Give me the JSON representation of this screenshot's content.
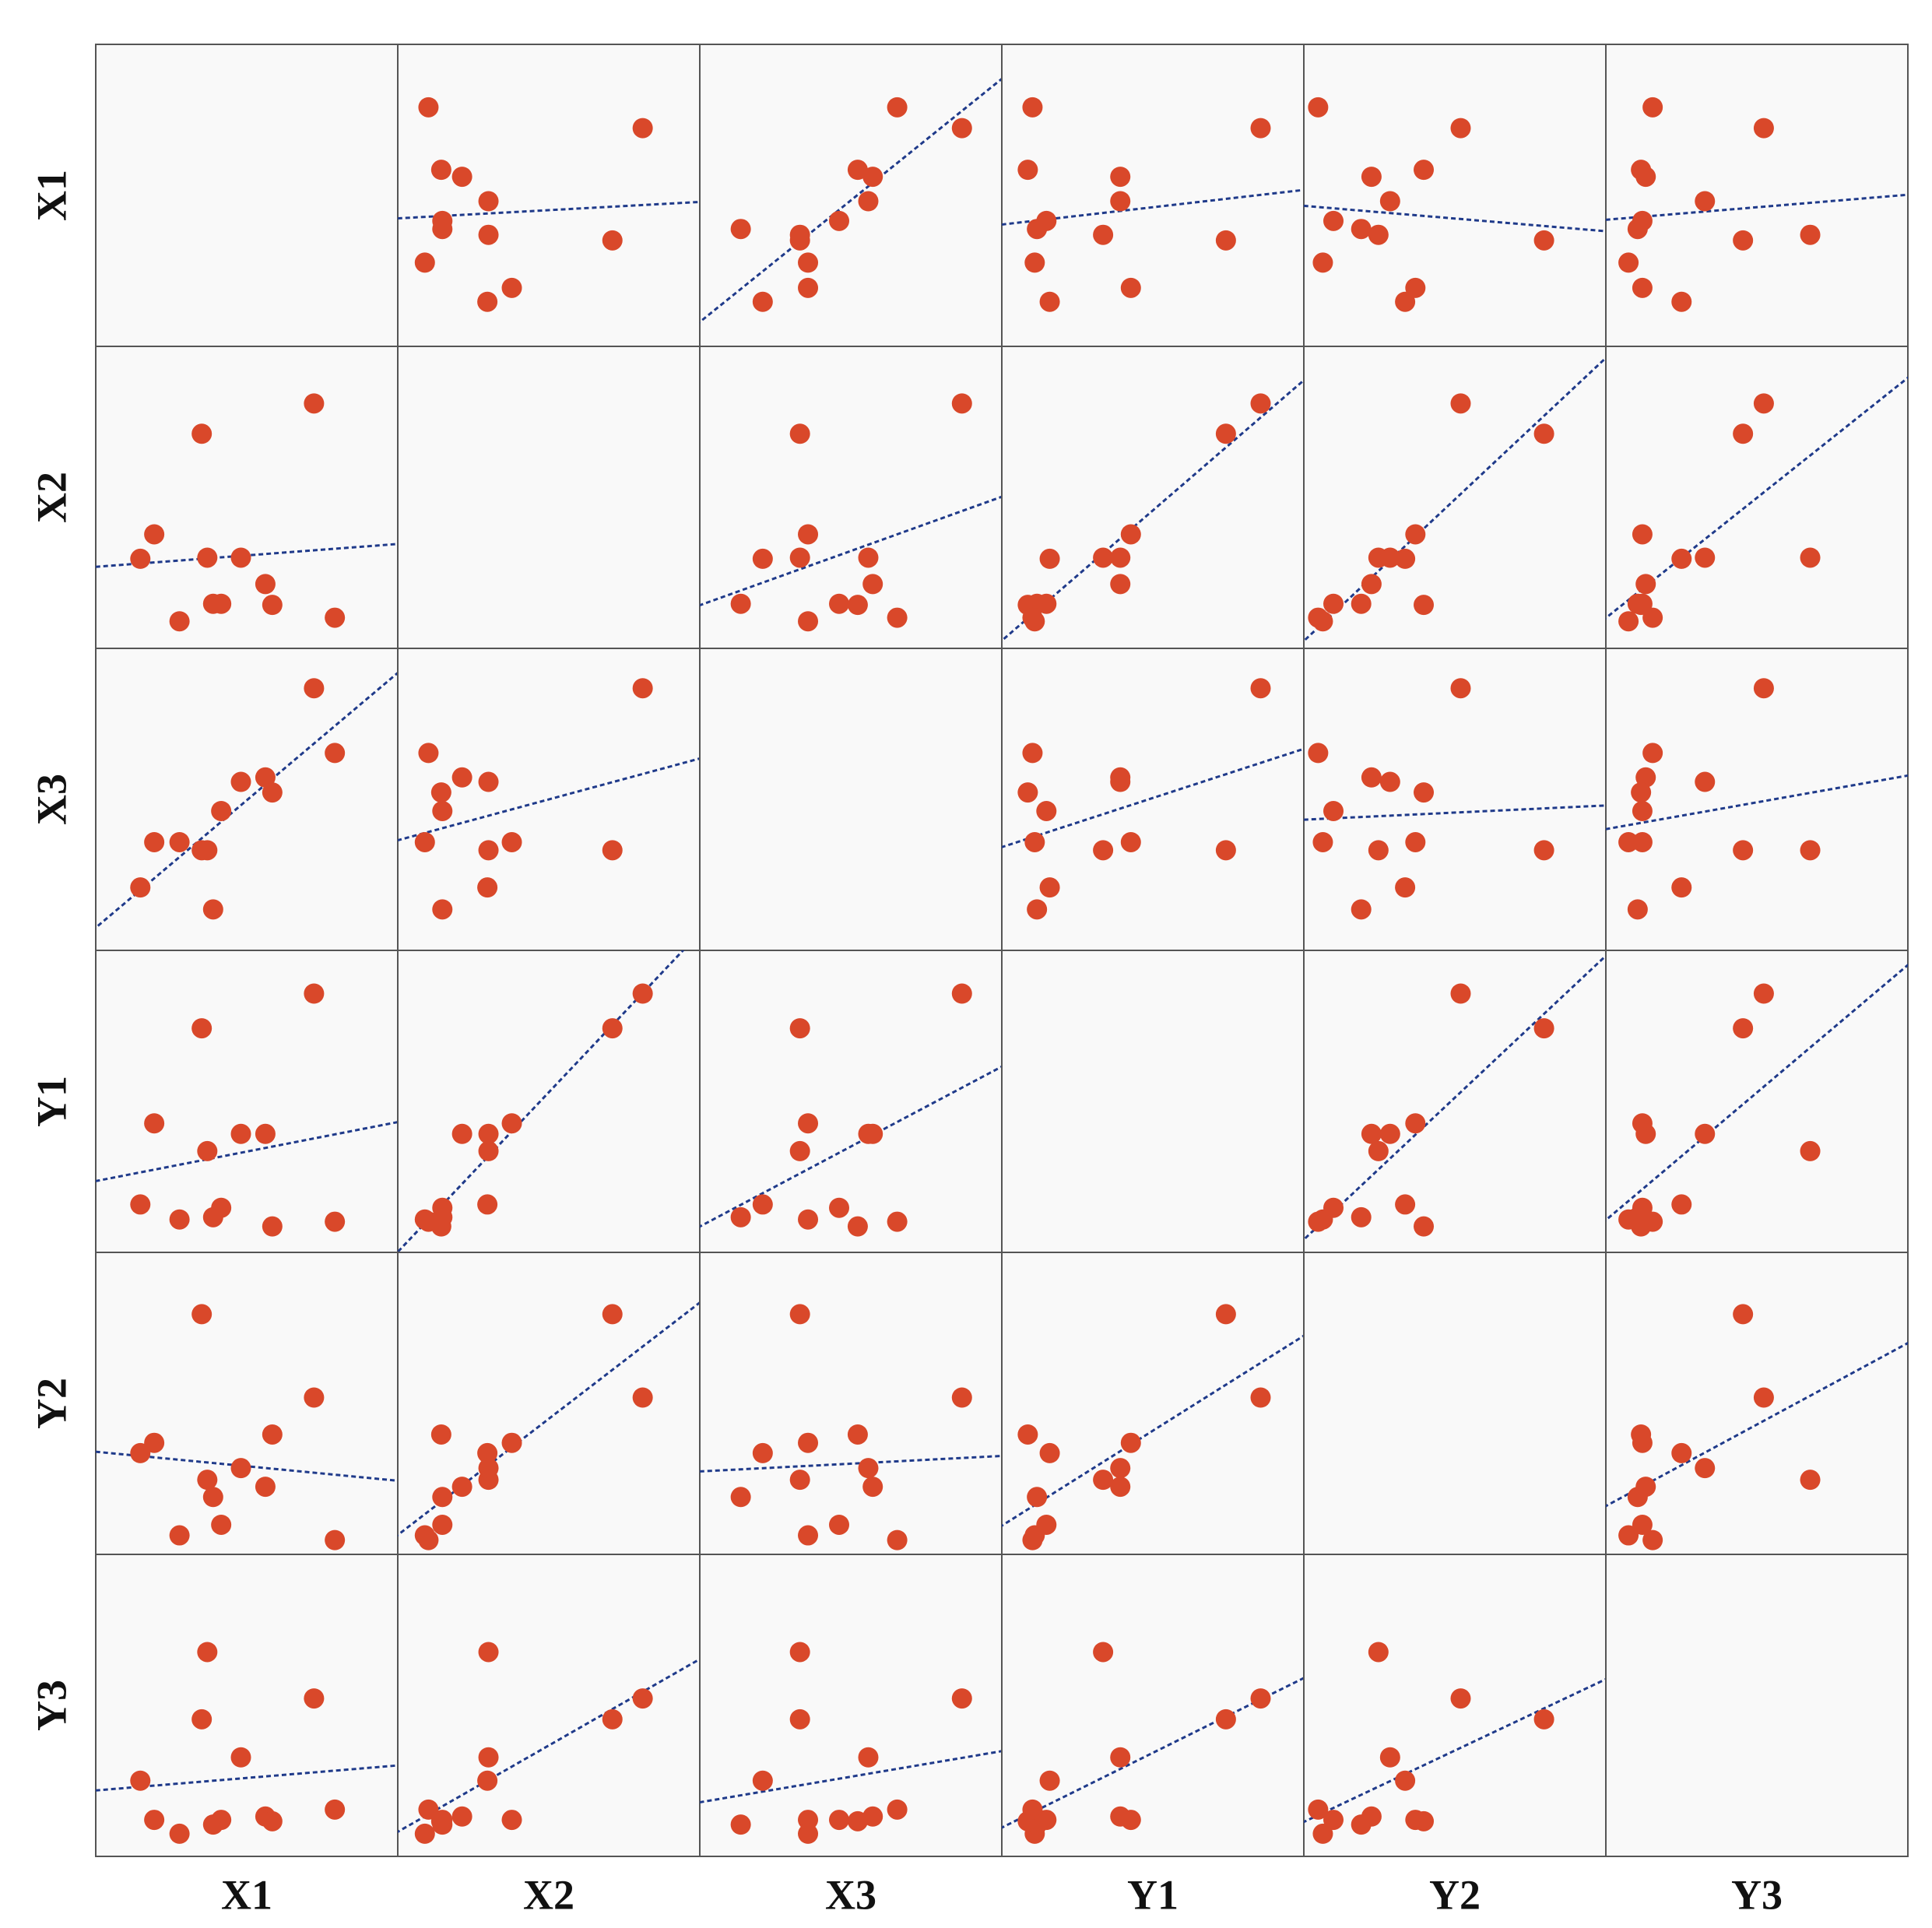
{
  "chart_data": {
    "type": "scatter-matrix",
    "color": "#d9482a",
    "line_color": "#1f3a8a",
    "lim": [
      0,
      100
    ],
    "variables": [
      {
        "name": "X1",
        "values": [
          11.7,
          16.7,
          25.8,
          33.8,
          35.8,
          37.9,
          40.8,
          47.9,
          56.7,
          59.2,
          74.2,
          81.7
        ]
      },
      {
        "name": "X2",
        "values": [
          27.9,
          36.7,
          5.4,
          72.9,
          28.3,
          11.7,
          11.7,
          28.3,
          18.8,
          11.3,
          83.8,
          6.7
        ]
      },
      {
        "name": "X3",
        "values": [
          18.3,
          34.6,
          34.6,
          31.7,
          31.7,
          10.4,
          45.8,
          56.3,
          57.9,
          52.5,
          90,
          66.7
        ]
      },
      {
        "name": "Y1",
        "values": [
          12.9,
          42.1,
          7.5,
          76.3,
          32.1,
          8.3,
          11.7,
          38.3,
          38.3,
          5,
          88.8,
          6.7
        ]
      },
      {
        "name": "Y2",
        "values": [
          32.1,
          35.8,
          2.5,
          82.1,
          22.5,
          16.3,
          6.3,
          26.7,
          20,
          38.8,
          52.1,
          0.8
        ]
      },
      {
        "name": "Y3",
        "values": [
          22.9,
          8.8,
          3.8,
          45,
          69.2,
          7.1,
          8.8,
          31.3,
          10,
          8.3,
          52.5,
          12.5
        ]
      }
    ]
  }
}
